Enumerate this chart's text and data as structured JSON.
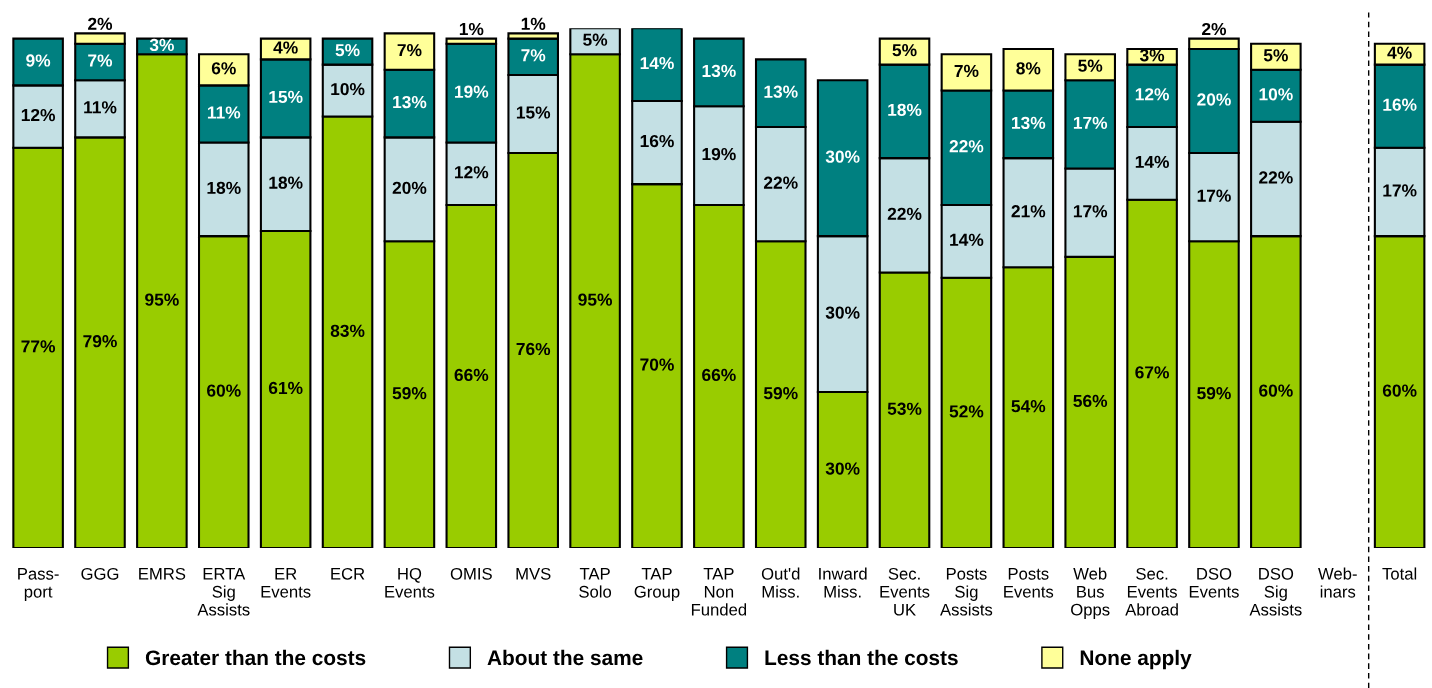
{
  "chart_data": {
    "type": "bar",
    "stacked": true,
    "legend": "bottom",
    "grid": false,
    "tick_labels": "x",
    "categories": [
      "Pass-\nport",
      "GGG",
      "EMRS",
      "ERTA\nSig\nAssists",
      "ER\nEvents",
      "ECR",
      "HQ\nEvents",
      "OMIS",
      "MVS",
      "TAP\nSolo",
      "TAP\nGroup",
      "TAP\nNon\nFunded",
      "Out'd\nMiss.",
      "Inward\nMiss.",
      "Sec.\nEvents\nUK",
      "Posts\nSig\nAssists",
      "Posts\nEvents",
      "Web\nBus\nOpps",
      "Sec.\nEvents\nAbroad",
      "DSO\nEvents",
      "DSO\nSig\nAssists",
      "Web-\ninars",
      "Total"
    ],
    "series": [
      {
        "name": "Greater than the costs",
        "color": "#99cc00",
        "values": [
          77,
          79,
          95,
          60,
          61,
          83,
          59,
          66,
          76,
          95,
          70,
          66,
          59,
          30,
          53,
          52,
          54,
          56,
          67,
          59,
          60,
          null,
          60
        ],
        "value_labels": [
          "77%",
          "79%",
          "95%",
          "60%",
          "61%",
          "83%",
          "59%",
          "66%",
          "76%",
          "95%",
          "70%",
          "66%",
          "59%",
          "30%",
          "53%",
          "52%",
          "54%",
          "56%",
          "67%",
          "59%",
          "60%",
          null,
          "60%"
        ]
      },
      {
        "name": "About the same",
        "color": "#c4e0e4",
        "values": [
          12,
          11,
          null,
          18,
          18,
          10,
          20,
          12,
          15,
          5,
          16,
          19,
          22,
          30,
          22,
          14,
          21,
          17,
          14,
          17,
          22,
          null,
          17
        ],
        "value_labels": [
          "12%",
          "11%",
          null,
          "18%",
          "18%",
          "10%",
          "20%",
          "12%",
          "15%",
          "5%",
          "16%",
          "19%",
          "22%",
          "30%",
          "22%",
          "14%",
          "21%",
          "17%",
          "14%",
          "17%",
          "22%",
          null,
          "17%"
        ]
      },
      {
        "name": "Less than the costs",
        "color": "#008080",
        "values": [
          9,
          7,
          3,
          11,
          15,
          5,
          13,
          19,
          7,
          null,
          14,
          13,
          13,
          30,
          18,
          22,
          13,
          17,
          12,
          20,
          10,
          null,
          16
        ],
        "value_labels": [
          "9%",
          "7%",
          "3%",
          "11%",
          "15%",
          "5%",
          "13%",
          "19%",
          "7%",
          null,
          "14%",
          "13%",
          "13%",
          "30%",
          "18%",
          "22%",
          "13%",
          "17%",
          "12%",
          "20%",
          "10%",
          null,
          "16%"
        ]
      },
      {
        "name": "None apply",
        "color": "#ffff99",
        "values": [
          null,
          2,
          null,
          6,
          4,
          null,
          7,
          1,
          1,
          null,
          null,
          null,
          null,
          null,
          5,
          7,
          8,
          5,
          3,
          2,
          5,
          null,
          4
        ],
        "value_labels": [
          null,
          "2%",
          null,
          "6%",
          "4%",
          null,
          "7%",
          "1%",
          "1%",
          null,
          null,
          null,
          null,
          null,
          "5%",
          "7%",
          "8%",
          "5%",
          "3%",
          "2%",
          "5%",
          null,
          "4%"
        ]
      }
    ]
  }
}
